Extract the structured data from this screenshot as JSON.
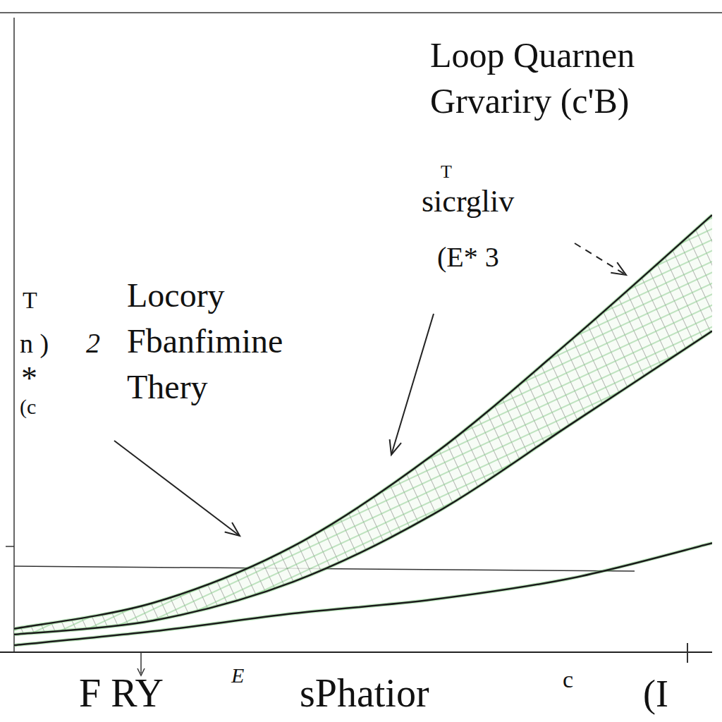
{
  "chart_data": {
    "type": "line",
    "x": [
      0,
      20,
      40,
      60,
      80,
      100
    ],
    "series": [
      {
        "color": "#1a1a1a",
        "line_style": "solid",
        "values": [
          3.7,
          7.8,
          16.7,
          31.1,
          49.4,
          68.9
        ]
      },
      {
        "color": "#1a1a1a",
        "line_style": "solid",
        "values": [
          2.8,
          5,
          11.1,
          21.7,
          36.1,
          50.6
        ]
      },
      {
        "color": "#1a1a1a",
        "line_style": "solid",
        "values": [
          1.1,
          3.3,
          6.1,
          8.3,
          11.7,
          17.2
        ]
      }
    ],
    "xlim": [
      0,
      100
    ],
    "ylim": [
      0,
      100
    ],
    "tick_labels": false,
    "grid": false,
    "annotations": [
      {
        "text": "Loop Quarnen"
      },
      {
        "text": "Grvariry (c'B)"
      },
      {
        "text": "T"
      },
      {
        "text": "sicrgliv"
      },
      {
        "text": "(E* 3"
      },
      {
        "text": "T"
      },
      {
        "text": "n )"
      },
      {
        "text": "2"
      },
      {
        "text": "*"
      },
      {
        "text": "(c"
      },
      {
        "text": "Locory"
      },
      {
        "text": "Fbanfimine"
      },
      {
        "text": "Thery"
      },
      {
        "text": "F RY"
      },
      {
        "text": "E"
      },
      {
        "text": "sPhatior"
      },
      {
        "text": "c"
      },
      {
        "text": "(I"
      }
    ]
  }
}
